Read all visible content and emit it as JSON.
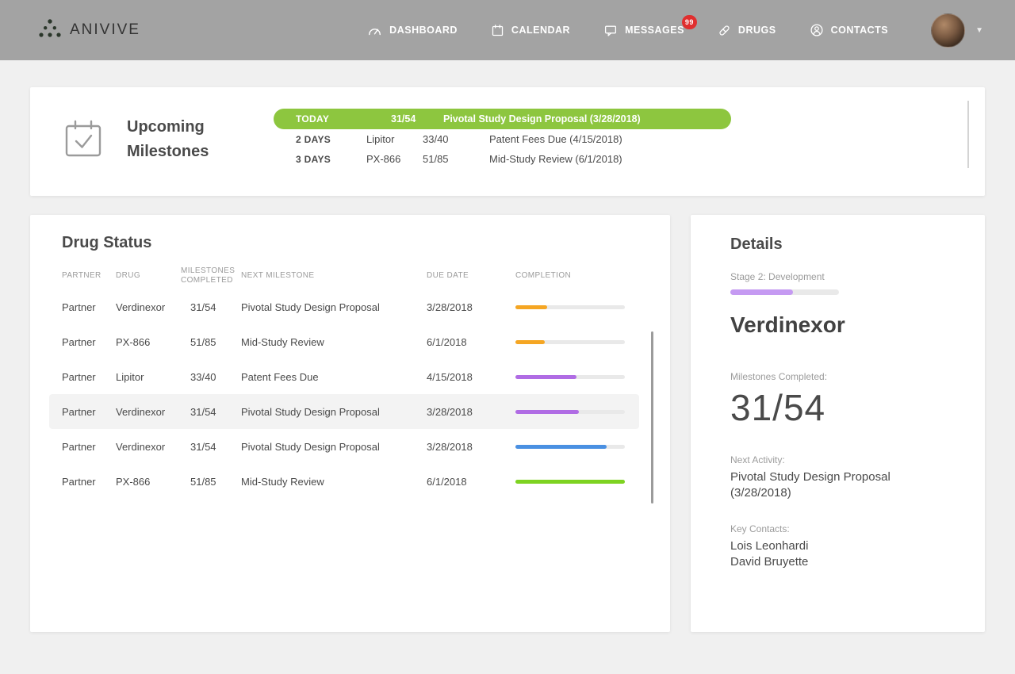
{
  "brand": {
    "name": "ANIVIVE"
  },
  "nav": {
    "items": [
      {
        "label": "DASHBOARD",
        "icon": "gauge-icon"
      },
      {
        "label": "CALENDAR",
        "icon": "calendar-icon"
      },
      {
        "label": "MESSAGES",
        "icon": "chat-icon",
        "badge": "99"
      },
      {
        "label": "DRUGS",
        "icon": "pill-icon"
      },
      {
        "label": "CONTACTS",
        "icon": "person-icon"
      }
    ]
  },
  "milestones": {
    "title": "Upcoming Milestones",
    "rows": [
      {
        "when": "TODAY",
        "drug": "",
        "fraction": "31/54",
        "milestone": "Pivotal Study Design Proposal (3/28/2018)",
        "highlight": true
      },
      {
        "when": "2 DAYS",
        "drug": "Lipitor",
        "fraction": "33/40",
        "milestone": "Patent Fees Due (4/15/2018)",
        "highlight": false
      },
      {
        "when": "3 DAYS",
        "drug": "PX-866",
        "fraction": "51/85",
        "milestone": "Mid-Study Review (6/1/2018)",
        "highlight": false
      }
    ]
  },
  "drug_status": {
    "title": "Drug Status",
    "columns": [
      "PARTNER",
      "DRUG",
      "MILESTONES COMPLETED",
      "NEXT MILESTONE",
      "DUE DATE",
      "COMPLETION"
    ],
    "rows": [
      {
        "partner": "Partner",
        "drug": "Verdinexor",
        "completed": "31/54",
        "next": "Pivotal Study Design Proposal",
        "due": "3/28/2018",
        "pct": 29,
        "color": "#f5a623",
        "selected": false
      },
      {
        "partner": "Partner",
        "drug": "PX-866",
        "completed": "51/85",
        "next": "Mid-Study Review",
        "due": "6/1/2018",
        "pct": 27,
        "color": "#f5a623",
        "selected": false
      },
      {
        "partner": "Partner",
        "drug": "Lipitor",
        "completed": "33/40",
        "next": "Patent Fees Due",
        "due": "4/15/2018",
        "pct": 56,
        "color": "#b06ce4",
        "selected": false
      },
      {
        "partner": "Partner",
        "drug": "Verdinexor",
        "completed": "31/54",
        "next": "Pivotal Study Design Proposal",
        "due": "3/28/2018",
        "pct": 58,
        "color": "#b06ce4",
        "selected": true
      },
      {
        "partner": "Partner",
        "drug": "Verdinexor",
        "completed": "31/54",
        "next": "Pivotal Study Design Proposal",
        "due": "3/28/2018",
        "pct": 83,
        "color": "#4a90e2",
        "selected": false
      },
      {
        "partner": "Partner",
        "drug": "PX-866",
        "completed": "51/85",
        "next": "Mid-Study Review",
        "due": "6/1/2018",
        "pct": 100,
        "color": "#7ed321",
        "selected": false
      }
    ]
  },
  "details": {
    "title": "Details",
    "stage": "Stage 2: Development",
    "stage_pct": 58,
    "stage_color": "#c59af2",
    "drug": "Verdinexor",
    "milestones_label": "Milestones Completed:",
    "milestones_value": "31/54",
    "next_label": "Next Activity:",
    "next_value": "Pivotal Study Design Proposal (3/28/2018)",
    "contacts_label": "Key Contacts:",
    "contacts": [
      "Lois Leonhardi",
      "David Bruyette"
    ]
  },
  "colors": {
    "green": "#8dc63f",
    "orange": "#f5a623",
    "purple": "#b06ce4",
    "blue": "#4a90e2",
    "bar_green": "#7ed321",
    "badge_red": "#e02f2f",
    "navbar_gray": "#a3a3a3"
  }
}
